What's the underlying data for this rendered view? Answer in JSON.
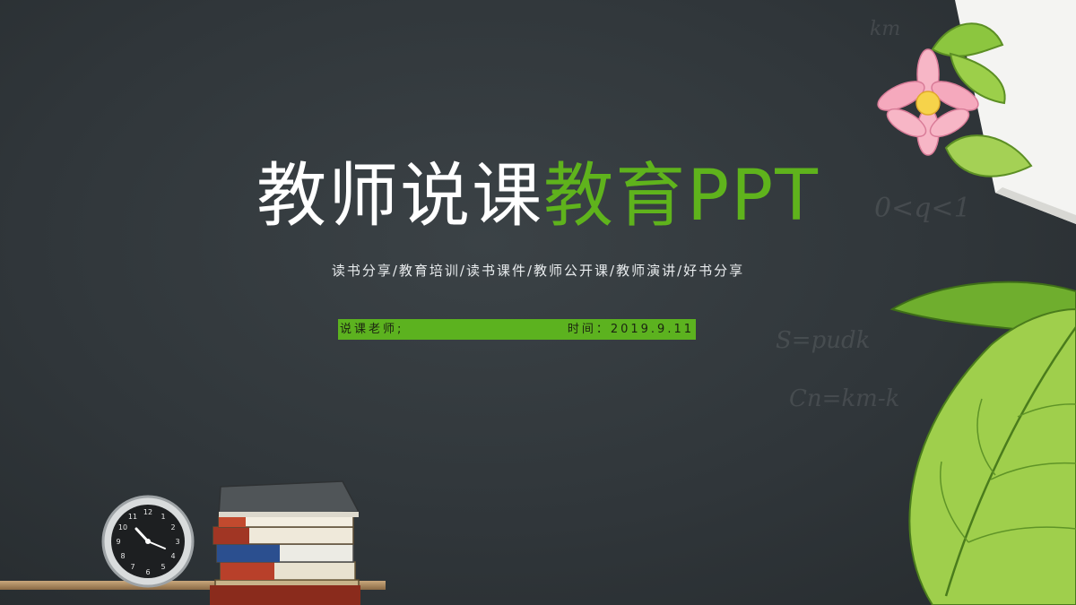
{
  "slide": {
    "title_white": "教师说课",
    "title_green": "教育PPT",
    "subtitle": "读书分享/教育培训/读书课件/教师公开课/教师演讲/好书分享",
    "presenter_label": "说课老师;",
    "time_label": "时间：2019.9.11"
  },
  "colors": {
    "background": "#30363a",
    "accent_green": "#5cb21f",
    "title_white": "#ffffff"
  },
  "decorations": {
    "clock_icon": "alarm-clock-icon",
    "books_icon": "book-stack-icon",
    "leaf_icon": "green-leaf-icon",
    "flower_icon": "pink-lotus-flower-icon"
  }
}
